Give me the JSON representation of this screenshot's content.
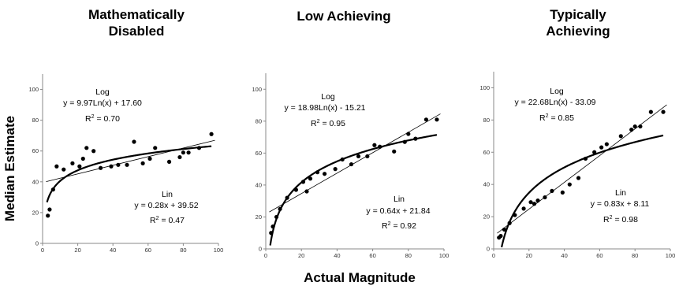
{
  "figure": {
    "ylabel": "Median Estimate",
    "xlabel": "Actual Magnitude"
  },
  "chart_data": [
    {
      "type": "scatter",
      "title_lines": [
        "Mathematically",
        "Disabled"
      ],
      "xlim": [
        0,
        100
      ],
      "ylim": [
        0,
        110
      ],
      "xticks": [
        0,
        20,
        40,
        60,
        80,
        100
      ],
      "yticks": [
        0,
        20,
        40,
        60,
        80,
        100
      ],
      "grid": false,
      "points": [
        {
          "x": 3,
          "y": 18
        },
        {
          "x": 4,
          "y": 22
        },
        {
          "x": 6,
          "y": 35
        },
        {
          "x": 8,
          "y": 50
        },
        {
          "x": 12,
          "y": 48
        },
        {
          "x": 17,
          "y": 52
        },
        {
          "x": 21,
          "y": 50
        },
        {
          "x": 23,
          "y": 55
        },
        {
          "x": 25,
          "y": 62
        },
        {
          "x": 29,
          "y": 60
        },
        {
          "x": 33,
          "y": 49
        },
        {
          "x": 39,
          "y": 50
        },
        {
          "x": 43,
          "y": 51
        },
        {
          "x": 48,
          "y": 51
        },
        {
          "x": 52,
          "y": 66
        },
        {
          "x": 57,
          "y": 52
        },
        {
          "x": 61,
          "y": 55
        },
        {
          "x": 64,
          "y": 62
        },
        {
          "x": 72,
          "y": 53
        },
        {
          "x": 78,
          "y": 56
        },
        {
          "x": 80,
          "y": 59
        },
        {
          "x": 83,
          "y": 59
        },
        {
          "x": 89,
          "y": 62
        },
        {
          "x": 96,
          "y": 71
        }
      ],
      "log_fit": {
        "label": "Log",
        "equation": "y = 9.97Ln(x) + 17.60",
        "r2_label": "R",
        "r2_value": " = 0.70",
        "a": 9.97,
        "b": 17.6
      },
      "lin_fit": {
        "label": "Lin",
        "equation": "y = 0.28x + 39.52",
        "r2_label": "R",
        "r2_value": " = 0.47",
        "m": 0.28,
        "c": 39.52
      }
    },
    {
      "type": "scatter",
      "title_lines": [
        "Low Achieving"
      ],
      "xlim": [
        0,
        100
      ],
      "ylim": [
        0,
        110
      ],
      "xticks": [
        0,
        20,
        40,
        60,
        80,
        100
      ],
      "yticks": [
        0,
        20,
        40,
        60,
        80,
        100
      ],
      "grid": false,
      "points": [
        {
          "x": 3,
          "y": 10
        },
        {
          "x": 4,
          "y": 14
        },
        {
          "x": 6,
          "y": 20
        },
        {
          "x": 8,
          "y": 25
        },
        {
          "x": 12,
          "y": 32
        },
        {
          "x": 17,
          "y": 37
        },
        {
          "x": 21,
          "y": 42
        },
        {
          "x": 23,
          "y": 36
        },
        {
          "x": 25,
          "y": 44
        },
        {
          "x": 29,
          "y": 48
        },
        {
          "x": 33,
          "y": 47
        },
        {
          "x": 39,
          "y": 50
        },
        {
          "x": 43,
          "y": 56
        },
        {
          "x": 48,
          "y": 53
        },
        {
          "x": 52,
          "y": 58
        },
        {
          "x": 57,
          "y": 58
        },
        {
          "x": 61,
          "y": 65
        },
        {
          "x": 64,
          "y": 64
        },
        {
          "x": 72,
          "y": 61
        },
        {
          "x": 78,
          "y": 67
        },
        {
          "x": 80,
          "y": 72
        },
        {
          "x": 84,
          "y": 69
        },
        {
          "x": 90,
          "y": 81
        },
        {
          "x": 96,
          "y": 81
        }
      ],
      "log_fit": {
        "label": "Log",
        "equation": "y = 18.98Ln(x) - 15.21",
        "r2_label": "R",
        "r2_value": " = 0.95",
        "a": 18.98,
        "b": -15.21
      },
      "lin_fit": {
        "label": "Lin",
        "equation": "y = 0.64x + 21.84",
        "r2_label": "R",
        "r2_value": " = 0.92",
        "m": 0.64,
        "c": 21.84
      }
    },
    {
      "type": "scatter",
      "title_lines": [
        "Typically",
        "Achieving"
      ],
      "xlim": [
        0,
        100
      ],
      "ylim": [
        0,
        110
      ],
      "xticks": [
        0,
        20,
        40,
        60,
        80,
        100
      ],
      "yticks": [
        0,
        20,
        40,
        60,
        80,
        100
      ],
      "grid": false,
      "points": [
        {
          "x": 3,
          "y": 7
        },
        {
          "x": 4,
          "y": 8
        },
        {
          "x": 6,
          "y": 12
        },
        {
          "x": 9,
          "y": 16
        },
        {
          "x": 12,
          "y": 21
        },
        {
          "x": 17,
          "y": 25
        },
        {
          "x": 21,
          "y": 29
        },
        {
          "x": 23,
          "y": 28
        },
        {
          "x": 25,
          "y": 30
        },
        {
          "x": 29,
          "y": 32
        },
        {
          "x": 33,
          "y": 36
        },
        {
          "x": 39,
          "y": 35
        },
        {
          "x": 43,
          "y": 40
        },
        {
          "x": 48,
          "y": 44
        },
        {
          "x": 52,
          "y": 56
        },
        {
          "x": 57,
          "y": 60
        },
        {
          "x": 61,
          "y": 63
        },
        {
          "x": 64,
          "y": 65
        },
        {
          "x": 72,
          "y": 70
        },
        {
          "x": 78,
          "y": 74
        },
        {
          "x": 80,
          "y": 76
        },
        {
          "x": 83,
          "y": 76
        },
        {
          "x": 89,
          "y": 85
        },
        {
          "x": 96,
          "y": 85
        }
      ],
      "log_fit": {
        "label": "Log",
        "equation": "y = 22.68Ln(x) - 33.09",
        "r2_label": "R",
        "r2_value": " = 0.85",
        "a": 22.68,
        "b": -33.09
      },
      "lin_fit": {
        "label": "Lin",
        "equation": "y = 0.83x + 8.11",
        "r2_label": "R",
        "r2_value": " = 0.98",
        "m": 0.83,
        "c": 8.11
      }
    }
  ]
}
